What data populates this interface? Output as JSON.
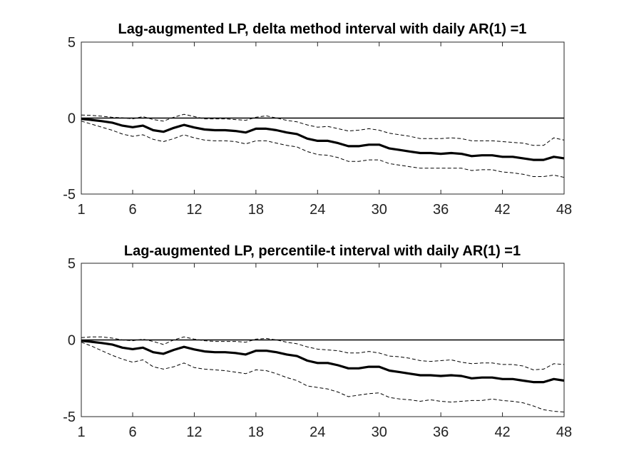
{
  "chart_data": [
    {
      "type": "line",
      "title": "Lag-augmented LP, delta method interval with daily AR(1) =1",
      "xlabel": "",
      "ylabel": "",
      "xlim": [
        1,
        48
      ],
      "ylim": [
        -5,
        5
      ],
      "xticks": [
        1,
        6,
        12,
        18,
        24,
        30,
        36,
        42,
        48
      ],
      "yticks": [
        -5,
        0,
        5
      ],
      "xtick_labels": [
        "1",
        "6",
        "12",
        "18",
        "24",
        "30",
        "36",
        "42",
        "48"
      ],
      "ytick_labels": [
        "-5",
        "0",
        "5"
      ],
      "reference_line": 0,
      "grid": false,
      "x": [
        1,
        2,
        3,
        4,
        5,
        6,
        7,
        8,
        9,
        10,
        11,
        12,
        13,
        14,
        15,
        16,
        17,
        18,
        19,
        20,
        21,
        22,
        23,
        24,
        25,
        26,
        27,
        28,
        29,
        30,
        31,
        32,
        33,
        34,
        35,
        36,
        37,
        38,
        39,
        40,
        41,
        42,
        43,
        44,
        45,
        46,
        47,
        48
      ],
      "series": [
        {
          "role": "estimate",
          "style": "solid-thick",
          "color": "#000000",
          "values": [
            -0.05,
            -0.12,
            -0.2,
            -0.3,
            -0.5,
            -0.6,
            -0.5,
            -0.8,
            -0.9,
            -0.65,
            -0.45,
            -0.62,
            -0.75,
            -0.8,
            -0.8,
            -0.85,
            -0.95,
            -0.7,
            -0.7,
            -0.8,
            -0.95,
            -1.05,
            -1.35,
            -1.5,
            -1.5,
            -1.65,
            -1.85,
            -1.85,
            -1.75,
            -1.75,
            -2.0,
            -2.1,
            -2.2,
            -2.3,
            -2.3,
            -2.35,
            -2.3,
            -2.35,
            -2.5,
            -2.45,
            -2.45,
            -2.55,
            -2.55,
            -2.65,
            -2.75,
            -2.75,
            -2.55,
            -2.65
          ]
        },
        {
          "role": "upper",
          "style": "dashed",
          "color": "#000000",
          "values": [
            0.2,
            0.18,
            0.12,
            0.05,
            0.02,
            -0.05,
            0.1,
            -0.1,
            -0.2,
            0.05,
            0.25,
            0.1,
            -0.05,
            -0.05,
            -0.05,
            -0.1,
            -0.15,
            0.05,
            0.15,
            0.0,
            -0.15,
            -0.25,
            -0.45,
            -0.6,
            -0.55,
            -0.7,
            -0.85,
            -0.8,
            -0.7,
            -0.8,
            -1.0,
            -1.1,
            -1.2,
            -1.35,
            -1.35,
            -1.35,
            -1.3,
            -1.35,
            -1.5,
            -1.5,
            -1.5,
            -1.55,
            -1.6,
            -1.65,
            -1.8,
            -1.8,
            -1.3,
            -1.45
          ]
        },
        {
          "role": "lower",
          "style": "dashed",
          "color": "#000000",
          "values": [
            -0.2,
            -0.4,
            -0.6,
            -0.8,
            -1.05,
            -1.2,
            -1.1,
            -1.4,
            -1.55,
            -1.35,
            -1.1,
            -1.3,
            -1.45,
            -1.5,
            -1.5,
            -1.55,
            -1.7,
            -1.5,
            -1.5,
            -1.65,
            -1.8,
            -1.9,
            -2.2,
            -2.4,
            -2.45,
            -2.6,
            -2.85,
            -2.85,
            -2.75,
            -2.75,
            -3.0,
            -3.1,
            -3.2,
            -3.3,
            -3.3,
            -3.3,
            -3.3,
            -3.3,
            -3.45,
            -3.4,
            -3.4,
            -3.55,
            -3.6,
            -3.7,
            -3.85,
            -3.85,
            -3.75,
            -3.9
          ]
        }
      ]
    },
    {
      "type": "line",
      "title": "Lag-augmented LP, percentile-t interval with daily AR(1) =1",
      "xlabel": "",
      "ylabel": "",
      "xlim": [
        1,
        48
      ],
      "ylim": [
        -5,
        5
      ],
      "xticks": [
        1,
        6,
        12,
        18,
        24,
        30,
        36,
        42,
        48
      ],
      "yticks": [
        -5,
        0,
        5
      ],
      "xtick_labels": [
        "1",
        "6",
        "12",
        "18",
        "24",
        "30",
        "36",
        "42",
        "48"
      ],
      "ytick_labels": [
        "-5",
        "0",
        "5"
      ],
      "reference_line": 0,
      "grid": false,
      "x": [
        1,
        2,
        3,
        4,
        5,
        6,
        7,
        8,
        9,
        10,
        11,
        12,
        13,
        14,
        15,
        16,
        17,
        18,
        19,
        20,
        21,
        22,
        23,
        24,
        25,
        26,
        27,
        28,
        29,
        30,
        31,
        32,
        33,
        34,
        35,
        36,
        37,
        38,
        39,
        40,
        41,
        42,
        43,
        44,
        45,
        46,
        47,
        48
      ],
      "series": [
        {
          "role": "estimate",
          "style": "solid-thick",
          "color": "#000000",
          "values": [
            -0.05,
            -0.12,
            -0.2,
            -0.3,
            -0.5,
            -0.6,
            -0.5,
            -0.8,
            -0.9,
            -0.65,
            -0.45,
            -0.62,
            -0.75,
            -0.8,
            -0.8,
            -0.85,
            -0.95,
            -0.7,
            -0.7,
            -0.8,
            -0.95,
            -1.05,
            -1.35,
            -1.5,
            -1.5,
            -1.65,
            -1.85,
            -1.85,
            -1.75,
            -1.75,
            -2.0,
            -2.1,
            -2.2,
            -2.3,
            -2.3,
            -2.35,
            -2.3,
            -2.35,
            -2.5,
            -2.45,
            -2.45,
            -2.55,
            -2.55,
            -2.65,
            -2.75,
            -2.75,
            -2.55,
            -2.65
          ]
        },
        {
          "role": "upper",
          "style": "dashed",
          "color": "#000000",
          "values": [
            0.15,
            0.2,
            0.2,
            0.12,
            0.0,
            -0.05,
            0.05,
            -0.1,
            -0.3,
            0.0,
            0.2,
            0.05,
            -0.05,
            -0.1,
            -0.1,
            -0.1,
            -0.15,
            0.05,
            0.1,
            0.0,
            -0.15,
            -0.25,
            -0.45,
            -0.6,
            -0.65,
            -0.7,
            -0.85,
            -0.85,
            -0.75,
            -0.85,
            -1.05,
            -1.1,
            -1.2,
            -1.35,
            -1.4,
            -1.35,
            -1.3,
            -1.45,
            -1.55,
            -1.5,
            -1.5,
            -1.6,
            -1.6,
            -1.7,
            -1.95,
            -1.9,
            -1.55,
            -1.6
          ]
        },
        {
          "role": "lower",
          "style": "dashed",
          "color": "#000000",
          "values": [
            -0.15,
            -0.4,
            -0.7,
            -1.0,
            -1.25,
            -1.45,
            -1.3,
            -1.75,
            -1.9,
            -1.75,
            -1.5,
            -1.8,
            -1.9,
            -1.95,
            -2.0,
            -2.1,
            -2.2,
            -1.95,
            -2.0,
            -2.2,
            -2.45,
            -2.65,
            -3.0,
            -3.1,
            -3.2,
            -3.4,
            -3.7,
            -3.6,
            -3.5,
            -3.45,
            -3.75,
            -3.85,
            -3.9,
            -4.0,
            -3.9,
            -4.0,
            -4.05,
            -4.0,
            -3.95,
            -3.95,
            -3.85,
            -3.95,
            -4.0,
            -4.1,
            -4.3,
            -4.55,
            -4.65,
            -4.7
          ]
        }
      ]
    }
  ]
}
